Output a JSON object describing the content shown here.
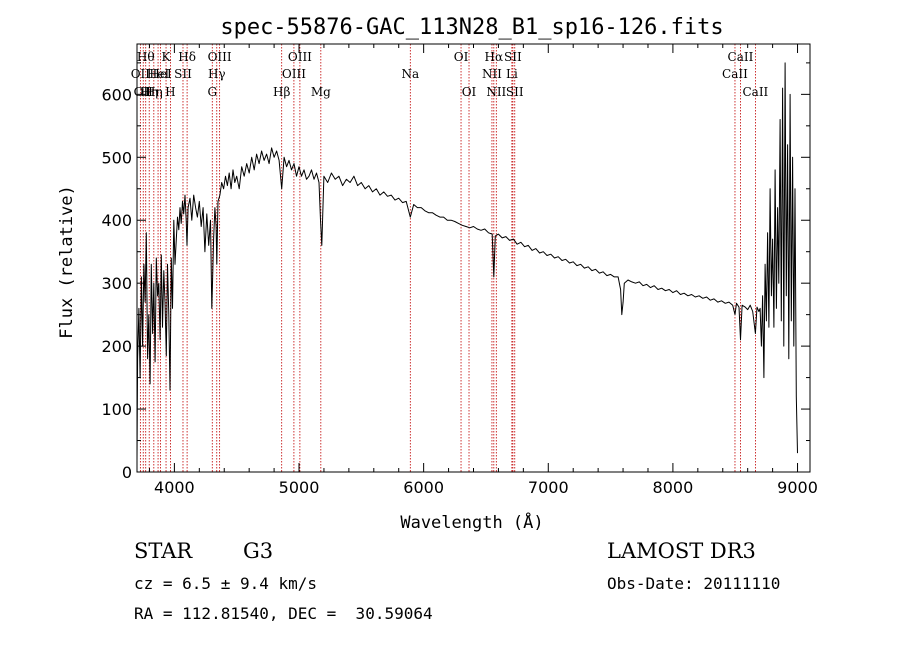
{
  "chart_data": {
    "type": "line",
    "title": "spec-55876-GAC_113N28_B1_sp16-126.fits",
    "xlabel": "Wavelength (Å)",
    "ylabel": "Flux (relative)",
    "xlim": [
      3700,
      9100
    ],
    "ylim": [
      0,
      680
    ],
    "xticks": [
      4000,
      5000,
      6000,
      7000,
      8000,
      9000
    ],
    "yticks": [
      0,
      100,
      200,
      300,
      400,
      500,
      600
    ],
    "xtick_labels": [
      "4000",
      "5000",
      "6000",
      "7000",
      "8000",
      "9000"
    ],
    "ytick_labels": [
      "0",
      "100",
      "200",
      "300",
      "400",
      "500",
      "600"
    ],
    "grid": false,
    "series": [
      {
        "points": [
          [
            3700,
            20
          ],
          [
            3705,
            180
          ],
          [
            3715,
            260
          ],
          [
            3725,
            150
          ],
          [
            3735,
            310
          ],
          [
            3745,
            200
          ],
          [
            3755,
            330
          ],
          [
            3765,
            270
          ],
          [
            3775,
            380
          ],
          [
            3785,
            180
          ],
          [
            3795,
            250
          ],
          [
            3805,
            140
          ],
          [
            3815,
            330
          ],
          [
            3825,
            220
          ],
          [
            3835,
            300
          ],
          [
            3845,
            175
          ],
          [
            3855,
            340
          ],
          [
            3865,
            280
          ],
          [
            3875,
            300
          ],
          [
            3885,
            210
          ],
          [
            3895,
            345
          ],
          [
            3905,
            230
          ],
          [
            3915,
            320
          ],
          [
            3925,
            270
          ],
          [
            3935,
            185
          ],
          [
            3945,
            330
          ],
          [
            3955,
            250
          ],
          [
            3965,
            130
          ],
          [
            3975,
            340
          ],
          [
            3985,
            260
          ],
          [
            3995,
            400
          ],
          [
            4005,
            330
          ],
          [
            4015,
            370
          ],
          [
            4025,
            405
          ],
          [
            4035,
            385
          ],
          [
            4045,
            420
          ],
          [
            4055,
            395
          ],
          [
            4065,
            430
          ],
          [
            4075,
            410
          ],
          [
            4085,
            440
          ],
          [
            4095,
            400
          ],
          [
            4101,
            360
          ],
          [
            4110,
            420
          ],
          [
            4125,
            435
          ],
          [
            4140,
            400
          ],
          [
            4155,
            440
          ],
          [
            4170,
            420
          ],
          [
            4185,
            405
          ],
          [
            4200,
            430
          ],
          [
            4215,
            390
          ],
          [
            4230,
            420
          ],
          [
            4245,
            350
          ],
          [
            4260,
            410
          ],
          [
            4275,
            360
          ],
          [
            4290,
            400
          ],
          [
            4300,
            260
          ],
          [
            4306,
            300
          ],
          [
            4315,
            370
          ],
          [
            4325,
            420
          ],
          [
            4335,
            390
          ],
          [
            4340,
            330
          ],
          [
            4350,
            430
          ],
          [
            4365,
            440
          ],
          [
            4380,
            460
          ],
          [
            4395,
            450
          ],
          [
            4410,
            470
          ],
          [
            4425,
            455
          ],
          [
            4440,
            475
          ],
          [
            4455,
            450
          ],
          [
            4470,
            480
          ],
          [
            4485,
            460
          ],
          [
            4500,
            470
          ],
          [
            4520,
            450
          ],
          [
            4540,
            485
          ],
          [
            4560,
            470
          ],
          [
            4580,
            490
          ],
          [
            4600,
            475
          ],
          [
            4620,
            500
          ],
          [
            4640,
            480
          ],
          [
            4660,
            505
          ],
          [
            4680,
            490
          ],
          [
            4700,
            510
          ],
          [
            4720,
            495
          ],
          [
            4740,
            505
          ],
          [
            4760,
            490
          ],
          [
            4780,
            515
          ],
          [
            4800,
            500
          ],
          [
            4820,
            510
          ],
          [
            4840,
            495
          ],
          [
            4861,
            450
          ],
          [
            4880,
            500
          ],
          [
            4900,
            485
          ],
          [
            4920,
            495
          ],
          [
            4940,
            480
          ],
          [
            4960,
            490
          ],
          [
            4980,
            470
          ],
          [
            5000,
            485
          ],
          [
            5020,
            470
          ],
          [
            5040,
            480
          ],
          [
            5060,
            465
          ],
          [
            5080,
            470
          ],
          [
            5100,
            480
          ],
          [
            5120,
            465
          ],
          [
            5140,
            475
          ],
          [
            5160,
            460
          ],
          [
            5172,
            400
          ],
          [
            5183,
            360
          ],
          [
            5200,
            470
          ],
          [
            5230,
            460
          ],
          [
            5260,
            475
          ],
          [
            5290,
            465
          ],
          [
            5320,
            470
          ],
          [
            5350,
            455
          ],
          [
            5380,
            465
          ],
          [
            5410,
            460
          ],
          [
            5440,
            470
          ],
          [
            5470,
            455
          ],
          [
            5500,
            460
          ],
          [
            5530,
            450
          ],
          [
            5560,
            455
          ],
          [
            5590,
            445
          ],
          [
            5620,
            450
          ],
          [
            5650,
            440
          ],
          [
            5680,
            445
          ],
          [
            5710,
            438
          ],
          [
            5740,
            440
          ],
          [
            5770,
            432
          ],
          [
            5800,
            435
          ],
          [
            5830,
            428
          ],
          [
            5860,
            430
          ],
          [
            5893,
            405
          ],
          [
            5920,
            425
          ],
          [
            5950,
            420
          ],
          [
            5980,
            420
          ],
          [
            6010,
            415
          ],
          [
            6040,
            412
          ],
          [
            6070,
            412
          ],
          [
            6100,
            408
          ],
          [
            6130,
            405
          ],
          [
            6160,
            405
          ],
          [
            6190,
            400
          ],
          [
            6220,
            400
          ],
          [
            6250,
            398
          ],
          [
            6280,
            395
          ],
          [
            6310,
            392
          ],
          [
            6340,
            390
          ],
          [
            6370,
            388
          ],
          [
            6400,
            390
          ],
          [
            6430,
            386
          ],
          [
            6460,
            384
          ],
          [
            6490,
            386
          ],
          [
            6520,
            380
          ],
          [
            6550,
            378
          ],
          [
            6563,
            310
          ],
          [
            6575,
            375
          ],
          [
            6600,
            378
          ],
          [
            6630,
            372
          ],
          [
            6660,
            374
          ],
          [
            6690,
            368
          ],
          [
            6720,
            370
          ],
          [
            6750,
            362
          ],
          [
            6780,
            365
          ],
          [
            6810,
            358
          ],
          [
            6840,
            360
          ],
          [
            6870,
            352
          ],
          [
            6900,
            355
          ],
          [
            6930,
            348
          ],
          [
            6960,
            350
          ],
          [
            6990,
            344
          ],
          [
            7020,
            346
          ],
          [
            7050,
            340
          ],
          [
            7080,
            342
          ],
          [
            7110,
            336
          ],
          [
            7140,
            338
          ],
          [
            7170,
            332
          ],
          [
            7200,
            334
          ],
          [
            7230,
            328
          ],
          [
            7260,
            330
          ],
          [
            7290,
            324
          ],
          [
            7320,
            326
          ],
          [
            7350,
            320
          ],
          [
            7380,
            322
          ],
          [
            7410,
            316
          ],
          [
            7440,
            318
          ],
          [
            7470,
            312
          ],
          [
            7500,
            314
          ],
          [
            7530,
            310
          ],
          [
            7560,
            310
          ],
          [
            7580,
            290
          ],
          [
            7590,
            250
          ],
          [
            7600,
            270
          ],
          [
            7610,
            300
          ],
          [
            7640,
            305
          ],
          [
            7670,
            302
          ],
          [
            7700,
            300
          ],
          [
            7730,
            302
          ],
          [
            7760,
            296
          ],
          [
            7790,
            298
          ],
          [
            7820,
            293
          ],
          [
            7850,
            296
          ],
          [
            7880,
            290
          ],
          [
            7910,
            292
          ],
          [
            7940,
            288
          ],
          [
            7970,
            290
          ],
          [
            8000,
            285
          ],
          [
            8030,
            288
          ],
          [
            8060,
            282
          ],
          [
            8090,
            284
          ],
          [
            8120,
            280
          ],
          [
            8150,
            282
          ],
          [
            8180,
            278
          ],
          [
            8210,
            280
          ],
          [
            8240,
            276
          ],
          [
            8270,
            278
          ],
          [
            8300,
            273
          ],
          [
            8330,
            275
          ],
          [
            8360,
            270
          ],
          [
            8390,
            272
          ],
          [
            8420,
            268
          ],
          [
            8450,
            270
          ],
          [
            8480,
            265
          ],
          [
            8498,
            250
          ],
          [
            8510,
            268
          ],
          [
            8530,
            262
          ],
          [
            8542,
            210
          ],
          [
            8555,
            265
          ],
          [
            8580,
            262
          ],
          [
            8600,
            258
          ],
          [
            8620,
            265
          ],
          [
            8640,
            255
          ],
          [
            8662,
            220
          ],
          [
            8675,
            262
          ],
          [
            8690,
            255
          ],
          [
            8700,
            260
          ],
          [
            8710,
            200
          ],
          [
            8720,
            280
          ],
          [
            8730,
            150
          ],
          [
            8740,
            330
          ],
          [
            8750,
            240
          ],
          [
            8760,
            380
          ],
          [
            8770,
            230
          ],
          [
            8780,
            450
          ],
          [
            8790,
            280
          ],
          [
            8800,
            370
          ],
          [
            8810,
            230
          ],
          [
            8820,
            480
          ],
          [
            8830,
            260
          ],
          [
            8840,
            420
          ],
          [
            8850,
            300
          ],
          [
            8860,
            560
          ],
          [
            8870,
            240
          ],
          [
            8880,
            610
          ],
          [
            8890,
            200
          ],
          [
            8900,
            650
          ],
          [
            8910,
            280
          ],
          [
            8920,
            520
          ],
          [
            8930,
            180
          ],
          [
            8940,
            600
          ],
          [
            8950,
            240
          ],
          [
            8960,
            500
          ],
          [
            8970,
            200
          ],
          [
            8980,
            450
          ],
          [
            8990,
            120
          ],
          [
            9000,
            30
          ]
        ]
      }
    ],
    "lines": [
      {
        "wavelength": 3727,
        "label": "OII",
        "row": 2
      },
      {
        "wavelength": 3750,
        "label": "OII",
        "row": 3
      },
      {
        "wavelength": 3770,
        "label": "Hθ",
        "row": 1
      },
      {
        "wavelength": 3798,
        "label": "Hη",
        "row": 3
      },
      {
        "wavelength": 3835,
        "label": "Hη",
        "row": 3
      },
      {
        "wavelength": 3869,
        "label": "HeI",
        "row": 2
      },
      {
        "wavelength": 3889,
        "label": "HeI",
        "row": 2
      },
      {
        "wavelength": 3933,
        "label": "K",
        "row": 1
      },
      {
        "wavelength": 3968,
        "label": "H",
        "row": 3
      },
      {
        "wavelength": 4069,
        "label": "SII",
        "row": 2
      },
      {
        "wavelength": 4102,
        "label": "Hδ",
        "row": 1
      },
      {
        "wavelength": 4304,
        "label": "G",
        "row": 3
      },
      {
        "wavelength": 4340,
        "label": "Hγ",
        "row": 2
      },
      {
        "wavelength": 4363,
        "label": "OIII",
        "row": 1
      },
      {
        "wavelength": 4861,
        "label": "Hβ",
        "row": 3
      },
      {
        "wavelength": 4959,
        "label": "OIII",
        "row": 2
      },
      {
        "wavelength": 5007,
        "label": "OIII",
        "row": 1
      },
      {
        "wavelength": 5175,
        "label": "Mg",
        "row": 3
      },
      {
        "wavelength": 5893,
        "label": "Na",
        "row": 2
      },
      {
        "wavelength": 6300,
        "label": "OI",
        "row": 1
      },
      {
        "wavelength": 6364,
        "label": "OI",
        "row": 3
      },
      {
        "wavelength": 6548,
        "label": "NII",
        "row": 2
      },
      {
        "wavelength": 6563,
        "label": "Hα",
        "row": 1
      },
      {
        "wavelength": 6583,
        "label": "NII",
        "row": 3
      },
      {
        "wavelength": 6708,
        "label": "Li",
        "row": 2
      },
      {
        "wavelength": 6716,
        "label": "SII",
        "row": 1
      },
      {
        "wavelength": 6731,
        "label": "SII",
        "row": 3
      },
      {
        "wavelength": 8498,
        "label": "CaII",
        "row": 2
      },
      {
        "wavelength": 8542,
        "label": "CaII",
        "row": 1
      },
      {
        "wavelength": 8662,
        "label": "CaII",
        "row": 3
      }
    ]
  },
  "info": {
    "class": "STAR",
    "subclass": "G3",
    "survey": "LAMOST DR3",
    "cz": "cz = 6.5 ± 9.4 km/s",
    "obs_date": "Obs-Date: 20111110",
    "coords": "RA = 112.81540, DEC =  30.59064"
  },
  "colors": {
    "spectrum": "#000000",
    "line_markers": "#c00000",
    "axes": "#000000"
  }
}
